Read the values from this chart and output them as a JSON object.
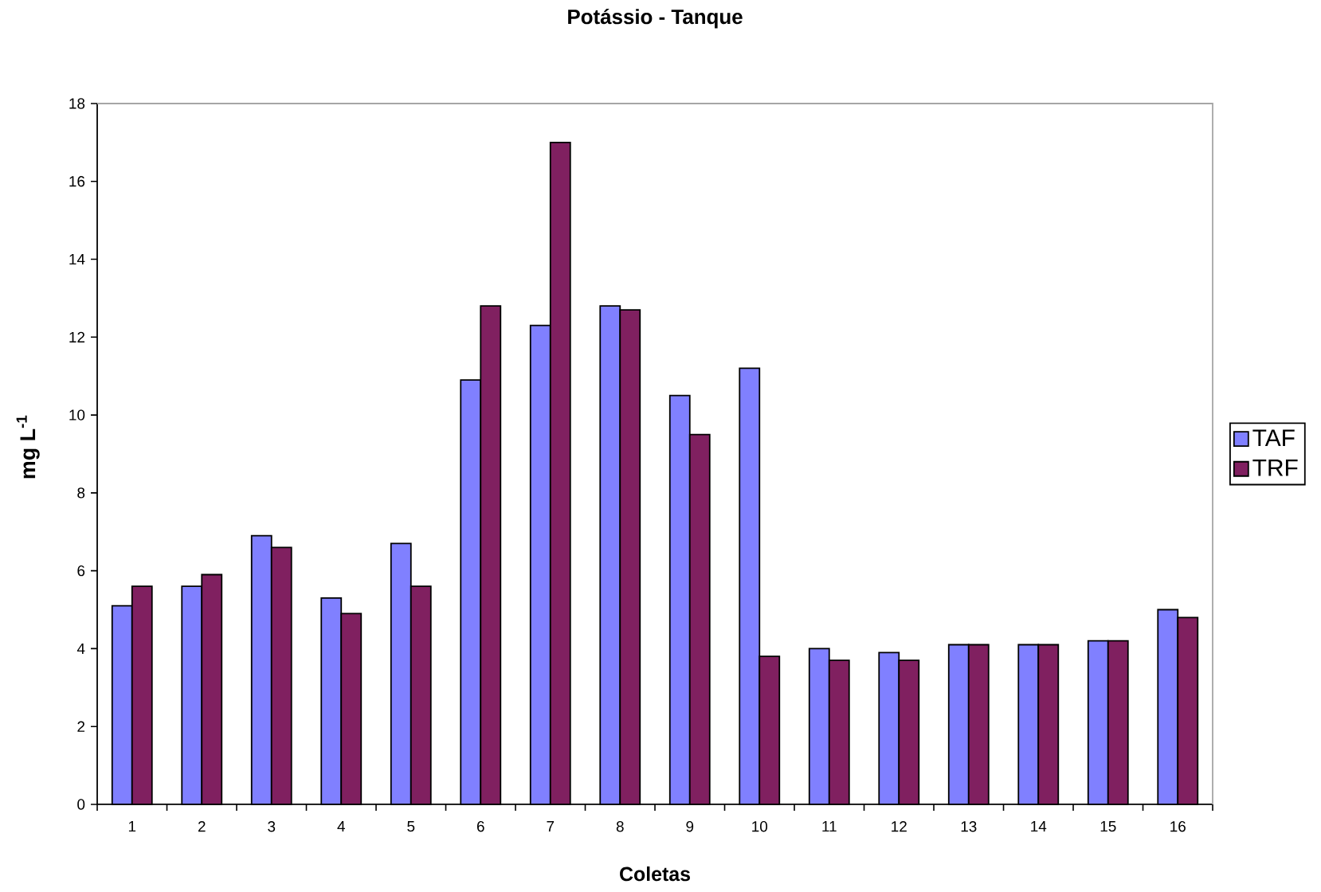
{
  "chart_data": {
    "type": "bar",
    "title": "Potássio - Tanque",
    "xlabel": "Coletas",
    "ylabel": "mg L$^{-1}$",
    "categories": [
      "1",
      "2",
      "3",
      "4",
      "5",
      "6",
      "7",
      "8",
      "9",
      "10",
      "11",
      "12",
      "13",
      "14",
      "15",
      "16"
    ],
    "series": [
      {
        "name": "TAF",
        "color": "#8080ff",
        "values": [
          5.1,
          5.6,
          6.9,
          5.3,
          6.7,
          10.9,
          12.3,
          12.8,
          10.5,
          11.2,
          4.0,
          3.9,
          4.1,
          4.1,
          4.2,
          5.0
        ]
      },
      {
        "name": "TRF",
        "color": "#802060",
        "values": [
          5.6,
          5.9,
          6.6,
          4.9,
          5.6,
          12.8,
          17.0,
          12.7,
          9.5,
          3.8,
          3.7,
          3.7,
          4.1,
          4.1,
          4.2,
          4.8
        ]
      }
    ],
    "ylim": [
      0,
      18
    ],
    "yticks": [
      0,
      2,
      4,
      6,
      8,
      10,
      12,
      14,
      16,
      18
    ],
    "legend": "right"
  }
}
